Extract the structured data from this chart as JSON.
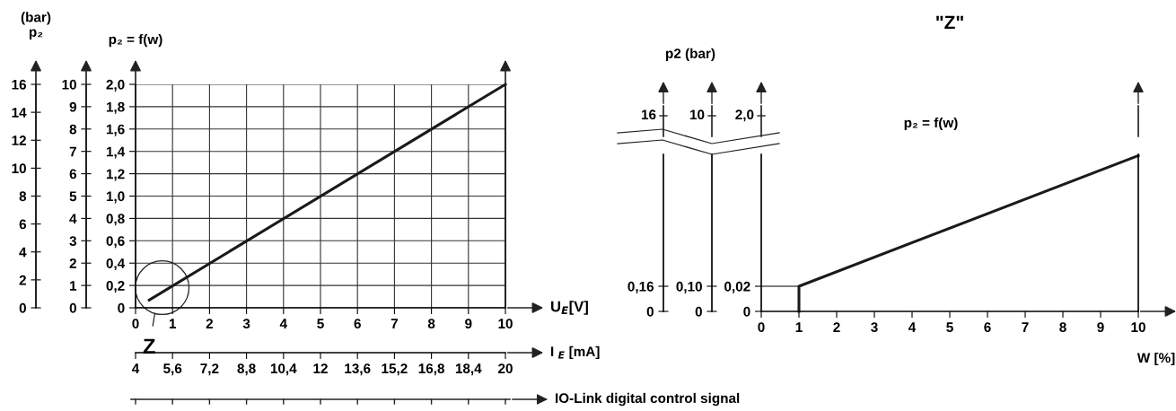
{
  "chart_data": [
    {
      "type": "line",
      "ylabel": "p₂ = f(w)",
      "xlabel": "U$_{E}$[V]",
      "xlim": [
        0,
        10
      ],
      "xticks": [
        0,
        1,
        2,
        3,
        4,
        5,
        6,
        7,
        8,
        9,
        10
      ],
      "ylim": [
        0,
        2.0
      ],
      "yticks": [
        0,
        {
          "value": 0.2,
          "label": "0,2"
        },
        {
          "value": 0.4,
          "label": "0,4"
        },
        {
          "value": 0.6,
          "label": "0,6"
        },
        {
          "value": 0.8,
          "label": "0,8"
        },
        {
          "value": 1.0,
          "label": "1,0"
        },
        {
          "value": 1.2,
          "label": "1,2"
        },
        {
          "value": 1.4,
          "label": "1,4"
        },
        {
          "value": 1.6,
          "label": "1,6"
        },
        {
          "value": 1.8,
          "label": "1,8"
        },
        {
          "value": 2.0,
          "label": "2,0"
        }
      ],
      "y2lim": [
        0,
        10
      ],
      "y2ticks": [
        0,
        1,
        2,
        3,
        4,
        5,
        6,
        7,
        8,
        9,
        10
      ],
      "y3lim": [
        0,
        16
      ],
      "y3ticks": [
        0,
        2,
        4,
        6,
        8,
        10,
        12,
        14,
        16
      ],
      "y3label": "(bar)\np₂",
      "x2lim": [
        4,
        20
      ],
      "x2ticks": [
        4,
        {
          "value": 5.6,
          "label": "5,6"
        },
        {
          "value": 7.2,
          "label": "7,2"
        },
        {
          "value": 8.8,
          "label": "8,8"
        },
        {
          "value": 10.4,
          "label": "10,4"
        },
        12,
        {
          "value": 13.6,
          "label": "13,6"
        },
        {
          "value": 15.2,
          "label": "15,2"
        },
        {
          "value": 16.8,
          "label": "16,8"
        },
        {
          "value": 18.4,
          "label": "18,4"
        },
        20
      ],
      "x2label": "I $_{E}$ [mA]",
      "series": [
        {
          "x": [
            0.37,
            10
          ],
          "values": [
            0.07,
            2.0
          ],
          "color": "#1a1a1a"
        }
      ],
      "annotations": [
        {
          "text": "Z",
          "x": 0.72,
          "y": 0.18
        },
        "IO-Link digital control signal"
      ],
      "grid": true,
      "marker": "none",
      "line_style": "solid"
    },
    {
      "type": "other",
      "title": "\"Z\"",
      "y3label": "p2 (bar)",
      "annotations": [
        "p₂ = f(w)",
        "2,0",
        "10",
        "16"
      ]
    },
    {
      "type": "line",
      "xlabel": "W [%]",
      "xlim": [
        0,
        10
      ],
      "xticks": [
        0,
        1,
        2,
        3,
        4,
        5,
        6,
        7,
        8,
        9,
        10
      ],
      "ylim": [
        0,
        0.125
      ],
      "yticks": [
        0,
        {
          "value": 0.02,
          "label": "0,02"
        }
      ],
      "y2lim": [
        0,
        0.625
      ],
      "y2ticks": [
        0,
        {
          "value": 0.1,
          "label": "0,10"
        }
      ],
      "y3lim": [
        0,
        1.0
      ],
      "y3ticks": [
        0,
        {
          "value": 0.16,
          "label": "0,16"
        }
      ],
      "series": [
        {
          "x": [
            0,
            1
          ],
          "values": [
            0.02,
            0.02
          ],
          "color": "#555555"
        },
        {
          "x": [
            1,
            1,
            10
          ],
          "values": [
            0,
            0.02,
            0.124
          ],
          "color": "#1a1a1a"
        }
      ],
      "grid": false,
      "marker": "none",
      "line_style": "solid"
    }
  ]
}
